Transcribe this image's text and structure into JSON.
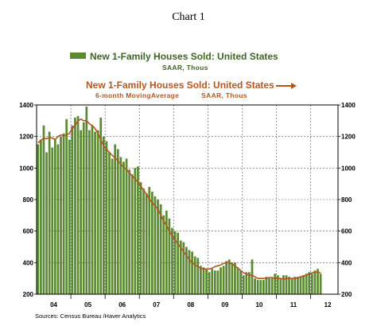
{
  "page": {
    "title": "Chart 1"
  },
  "legend": {
    "series1": {
      "label": "New 1-Family Houses Sold: United States",
      "sublabel": "SAAR, Thous",
      "color": "#5b8a33"
    },
    "series2": {
      "label": "New 1-Family Houses Sold: United States",
      "sublabel_a": "6-month MovingAverage",
      "sublabel_b": "SAAR, Thous",
      "color": "#b5561e"
    }
  },
  "source": "Sources: Census Bureau /Haver Analytics",
  "chart_data": {
    "type": "bar",
    "x_tick_labels": [
      "04",
      "05",
      "06",
      "07",
      "08",
      "09",
      "10",
      "11",
      "12"
    ],
    "ylim": [
      200,
      1400
    ],
    "yticks": [
      200,
      400,
      600,
      800,
      1000,
      1200,
      1400
    ],
    "grid": "dashed vertical at year boundaries, dashed horizontal at y ticks",
    "axes": "left and right y axes with identical scales",
    "start_month": "2004-01",
    "series": [
      {
        "name": "New 1-Family Houses Sold: United States",
        "type": "bar",
        "color": "#5b8a33",
        "values": [
          1150,
          1180,
          1270,
          1100,
          1230,
          1130,
          1180,
          1150,
          1200,
          1220,
          1310,
          1180,
          1270,
          1320,
          1330,
          1240,
          1290,
          1390,
          1240,
          1270,
          1230,
          1240,
          1320,
          1200,
          1170,
          1100,
          1060,
          1150,
          1120,
          1070,
          1040,
          1060,
          990,
          960,
          1000,
          1010,
          910,
          870,
          840,
          880,
          850,
          820,
          800,
          770,
          700,
          730,
          680,
          620,
          600,
          590,
          540,
          530,
          500,
          480,
          470,
          440,
          430,
          380,
          370,
          360,
          340,
          360,
          350,
          350,
          370,
          380,
          410,
          420,
          400,
          400,
          370,
          350,
          320,
          340,
          340,
          420,
          300,
          290,
          290,
          290,
          310,
          300,
          300,
          330,
          320,
          300,
          320,
          320,
          310,
          300,
          310,
          310,
          310,
          320,
          330,
          340,
          330,
          350,
          360,
          330
        ]
      },
      {
        "name": "New 1-Family Houses Sold: United States",
        "type": "line",
        "color": "#b5561e",
        "values": [
          1160,
          1175,
          1190,
          1185,
          1195,
          1190,
          1180,
          1200,
          1210,
          1205,
          1210,
          1220,
          1250,
          1270,
          1300,
          1310,
          1300,
          1300,
          1280,
          1270,
          1250,
          1220,
          1180,
          1140,
          1120,
          1100,
          1080,
          1065,
          1045,
          1025,
          1005,
          990,
          970,
          950,
          930,
          910,
          885,
          860,
          835,
          805,
          780,
          760,
          740,
          700,
          665,
          635,
          600,
          570,
          545,
          520,
          495,
          470,
          445,
          420,
          400,
          385,
          375,
          365,
          360,
          360,
          360,
          365,
          375,
          380,
          385,
          395,
          400,
          400,
          390,
          380,
          365,
          350,
          335,
          330,
          320,
          320,
          310,
          300,
          300,
          300,
          300,
          305,
          305,
          300,
          300,
          300,
          295,
          300,
          300,
          300,
          300,
          305,
          310,
          315,
          320,
          330,
          335,
          340,
          340,
          335
        ]
      }
    ]
  }
}
